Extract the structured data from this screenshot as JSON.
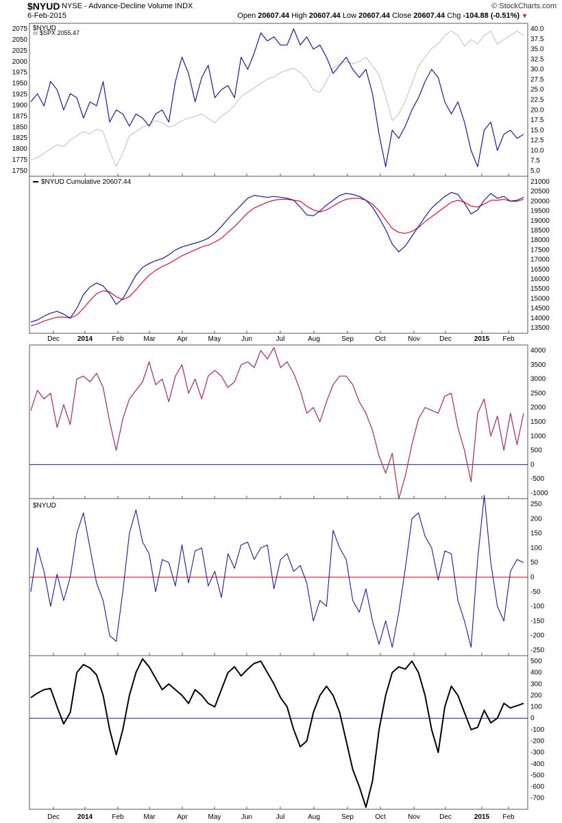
{
  "header": {
    "symbol": "$NYUD",
    "description": "NYSE - Advance-Decline Volume  INDX",
    "date": "6-Feb-2015",
    "brand": "© StockCharts.com",
    "open_label": "Open",
    "open": "20607.44",
    "high_label": "High",
    "high": "20607.44",
    "low_label": "Low",
    "low": "20607.44",
    "close_label": "Close",
    "close": "20607.44",
    "chg_label": "Chg",
    "chg": "-104.88 (-0.51%)"
  },
  "panel_labels": {
    "p1_line1": "$NYUD",
    "p1_line2": "$SPX 2055.47",
    "p2": "$NYUD Cumulative 20607.44",
    "p4": "$NYUD"
  },
  "x_axis_labels": [
    "Dec",
    "2014",
    "Feb",
    "Mar",
    "Apr",
    "May",
    "Jun",
    "Jul",
    "Aug",
    "Sep",
    "Oct",
    "Nov",
    "Dec",
    "2015",
    "Feb"
  ],
  "colors": {
    "nyud": "#1a1a8c",
    "spx": "#c8c8c8",
    "ma": "#d0103a",
    "osc": "#a03a62",
    "zero": "#1a1a8c",
    "zero_red": "#c8102e",
    "black": "#000000"
  },
  "chart_data": [
    {
      "type": "line",
      "title": "$NYUD",
      "x": [
        0,
        10,
        20,
        30,
        40,
        50,
        60,
        70,
        80,
        90,
        100,
        110,
        120,
        130,
        140,
        150,
        160,
        170,
        180,
        190,
        200,
        210,
        220,
        230,
        240,
        250,
        260,
        270,
        280,
        290,
        300,
        310,
        320,
        330,
        340,
        350,
        360,
        370,
        380,
        390,
        400,
        410,
        420,
        430,
        440,
        450,
        460,
        470,
        480,
        490,
        500,
        510,
        520,
        530,
        540,
        550,
        560,
        570,
        580,
        590,
        600,
        610,
        620,
        630,
        640,
        650,
        660,
        670,
        680,
        690,
        700,
        710,
        720,
        730,
        740,
        750
      ],
      "series": [
        {
          "name": "$NYUD",
          "axis": "right",
          "values": [
            22,
            24,
            21,
            27,
            25,
            20,
            24,
            23,
            18,
            22,
            21,
            27,
            17,
            20,
            19,
            16,
            19,
            18,
            16,
            19,
            20,
            17,
            27,
            33,
            29,
            22,
            28,
            31,
            23,
            25,
            26,
            23,
            33,
            30,
            34,
            39,
            37,
            38,
            36,
            36,
            40,
            36,
            38,
            35,
            36,
            33,
            29,
            31,
            33,
            30,
            28,
            30,
            24,
            14,
            6,
            15,
            13,
            16,
            20,
            23,
            27,
            30,
            28,
            22,
            19,
            22,
            17,
            10,
            6,
            15,
            17,
            10,
            14,
            15,
            13,
            14
          ]
        },
        {
          "name": "$SPX",
          "axis": "left",
          "values": [
            1775,
            1780,
            1790,
            1800,
            1810,
            1805,
            1820,
            1830,
            1840,
            1835,
            1845,
            1840,
            1795,
            1760,
            1790,
            1830,
            1840,
            1850,
            1855,
            1865,
            1860,
            1850,
            1855,
            1865,
            1870,
            1875,
            1880,
            1870,
            1860,
            1875,
            1885,
            1900,
            1920,
            1930,
            1940,
            1950,
            1960,
            1965,
            1975,
            1980,
            1985,
            1975,
            1960,
            1935,
            1930,
            1955,
            1985,
            1995,
            2000,
            1995,
            2000,
            2010,
            1990,
            1970,
            1920,
            1865,
            1880,
            1910,
            1950,
            1990,
            2010,
            2030,
            2040,
            2060,
            2070,
            2060,
            2035,
            2050,
            2040,
            2060,
            2070,
            2040,
            2050,
            2060,
            2070,
            2060
          ]
        }
      ],
      "ylim_right": [
        5,
        40
      ],
      "ylim_left": [
        1750,
        2075
      ],
      "yticks_right": [
        5.0,
        7.5,
        10.0,
        12.5,
        15.0,
        17.5,
        20.0,
        22.5,
        25.0,
        27.5,
        30.0,
        32.5,
        35.0,
        37.5,
        40.0
      ],
      "yticks_left": [
        1750,
        1775,
        1800,
        1825,
        1850,
        1875,
        1900,
        1925,
        1950,
        1975,
        2000,
        2025,
        2050,
        2075
      ]
    },
    {
      "type": "line",
      "title": "$NYUD Cumulative 20607.44",
      "x": [
        0,
        10,
        20,
        30,
        40,
        50,
        60,
        70,
        80,
        90,
        100,
        110,
        120,
        130,
        140,
        150,
        160,
        170,
        180,
        190,
        200,
        210,
        220,
        230,
        240,
        250,
        260,
        270,
        280,
        290,
        300,
        310,
        320,
        330,
        340,
        350,
        360,
        370,
        380,
        390,
        400,
        410,
        420,
        430,
        440,
        450,
        460,
        470,
        480,
        490,
        500,
        510,
        520,
        530,
        540,
        550,
        560,
        570,
        580,
        590,
        600,
        610,
        620,
        630,
        640,
        650,
        660,
        670,
        680,
        690,
        700,
        710,
        720,
        730,
        740,
        750
      ],
      "series": [
        {
          "name": "$NYUD Cumulative",
          "values": [
            13800,
            13900,
            14100,
            14250,
            14350,
            14200,
            14000,
            14500,
            15200,
            15600,
            15800,
            15650,
            15250,
            14700,
            15000,
            15600,
            16200,
            16600,
            16800,
            16950,
            17050,
            17250,
            17500,
            17650,
            17750,
            17850,
            17950,
            18100,
            18350,
            18700,
            19100,
            19450,
            19800,
            20150,
            20300,
            20250,
            20200,
            20250,
            20200,
            20150,
            20050,
            19700,
            19300,
            19250,
            19500,
            19800,
            20050,
            20300,
            20400,
            20350,
            20250,
            20050,
            19700,
            19150,
            18550,
            17800,
            17400,
            17700,
            18200,
            18700,
            19200,
            19650,
            19950,
            20250,
            20450,
            20350,
            19900,
            19350,
            19550,
            20050,
            20400,
            20150,
            20250,
            20000,
            20050,
            20200
          ]
        },
        {
          "name": "Moving Average",
          "values": [
            13600,
            13700,
            13850,
            13950,
            14050,
            14050,
            14000,
            14150,
            14500,
            14900,
            15250,
            15400,
            15350,
            15100,
            14950,
            15100,
            15450,
            15850,
            16200,
            16450,
            16650,
            16800,
            17000,
            17200,
            17350,
            17500,
            17650,
            17750,
            17900,
            18100,
            18400,
            18700,
            19050,
            19400,
            19650,
            19800,
            19950,
            20050,
            20100,
            20100,
            20050,
            20000,
            19750,
            19550,
            19450,
            19550,
            19750,
            19950,
            20100,
            20150,
            20150,
            20050,
            19850,
            19500,
            19050,
            18600,
            18400,
            18350,
            18450,
            18650,
            18950,
            19200,
            19450,
            19700,
            19950,
            20050,
            19950,
            19750,
            19700,
            19850,
            20050,
            20050,
            20100,
            20000,
            20000,
            20100
          ]
        }
      ],
      "ylim": [
        13500,
        21000
      ],
      "yticks": [
        13500,
        14000,
        14500,
        15000,
        15500,
        16000,
        16500,
        17000,
        17500,
        18000,
        18500,
        19000,
        19500,
        20000,
        20500,
        21000
      ]
    },
    {
      "type": "line",
      "title": "",
      "x": [
        0,
        10,
        20,
        30,
        40,
        50,
        60,
        70,
        80,
        90,
        100,
        110,
        120,
        130,
        140,
        150,
        160,
        170,
        180,
        190,
        200,
        210,
        220,
        230,
        240,
        250,
        260,
        270,
        280,
        290,
        300,
        310,
        320,
        330,
        340,
        350,
        360,
        370,
        380,
        390,
        400,
        410,
        420,
        430,
        440,
        450,
        460,
        470,
        480,
        490,
        500,
        510,
        520,
        530,
        540,
        550,
        560,
        570,
        580,
        590,
        600,
        610,
        620,
        630,
        640,
        650,
        660,
        670,
        680,
        690,
        700,
        710,
        720,
        730,
        740,
        750
      ],
      "series": [
        {
          "name": "",
          "values": [
            1900,
            2600,
            2300,
            2500,
            1300,
            2100,
            1400,
            3000,
            3100,
            2900,
            3200,
            2700,
            1500,
            500,
            1600,
            2300,
            2600,
            2900,
            3600,
            2800,
            3000,
            2200,
            3100,
            3500,
            2500,
            3000,
            2300,
            3100,
            3300,
            3100,
            2700,
            2900,
            3500,
            3600,
            3400,
            4000,
            3700,
            4100,
            3400,
            3600,
            3200,
            2600,
            1800,
            2000,
            1500,
            2200,
            2800,
            3100,
            3100,
            2800,
            2200,
            1800,
            1200,
            300,
            -300,
            400,
            -1200,
            -400,
            700,
            1600,
            2000,
            1900,
            1800,
            2400,
            2500,
            1300,
            500,
            -600,
            1800,
            2300,
            1000,
            1700,
            500,
            1800,
            700,
            1800
          ]
        }
      ],
      "ylim": [
        -1000,
        4000
      ],
      "yticks": [
        -1000,
        -500,
        0,
        500,
        1000,
        1500,
        2000,
        2500,
        3000,
        3500,
        4000
      ]
    },
    {
      "type": "line",
      "title": "$NYUD",
      "x": [
        0,
        10,
        20,
        30,
        40,
        50,
        60,
        70,
        80,
        90,
        100,
        110,
        120,
        130,
        140,
        150,
        160,
        170,
        180,
        190,
        200,
        210,
        220,
        230,
        240,
        250,
        260,
        270,
        280,
        290,
        300,
        310,
        320,
        330,
        340,
        350,
        360,
        370,
        380,
        390,
        400,
        410,
        420,
        430,
        440,
        450,
        460,
        470,
        480,
        490,
        500,
        510,
        520,
        530,
        540,
        550,
        560,
        570,
        580,
        590,
        600,
        610,
        620,
        630,
        640,
        650,
        660,
        670,
        680,
        690,
        700,
        710,
        720,
        730,
        740,
        750
      ],
      "series": [
        {
          "name": "",
          "values": [
            -50,
            100,
            20,
            -100,
            10,
            -80,
            0,
            150,
            220,
            100,
            -20,
            -80,
            -200,
            -220,
            -50,
            150,
            230,
            120,
            80,
            -50,
            60,
            50,
            -30,
            110,
            -20,
            90,
            100,
            -30,
            20,
            -70,
            80,
            30,
            110,
            120,
            60,
            100,
            110,
            -40,
            60,
            80,
            20,
            40,
            -20,
            -150,
            -80,
            -100,
            160,
            100,
            60,
            -80,
            -120,
            -40,
            -150,
            -230,
            -150,
            -240,
            -120,
            30,
            200,
            220,
            140,
            100,
            -10,
            90,
            80,
            -80,
            -150,
            -240,
            60,
            280,
            50,
            -100,
            -150,
            20,
            60,
            50
          ]
        }
      ],
      "ylim": [
        -250,
        250
      ],
      "yticks": [
        -250,
        -200,
        -150,
        -100,
        -50,
        0,
        50,
        100,
        150,
        200,
        250
      ]
    },
    {
      "type": "line",
      "title": "",
      "x": [
        0,
        10,
        20,
        30,
        40,
        50,
        60,
        70,
        80,
        90,
        100,
        110,
        120,
        130,
        140,
        150,
        160,
        170,
        180,
        190,
        200,
        210,
        220,
        230,
        240,
        250,
        260,
        270,
        280,
        290,
        300,
        310,
        320,
        330,
        340,
        350,
        360,
        370,
        380,
        390,
        400,
        410,
        420,
        430,
        440,
        450,
        460,
        470,
        480,
        490,
        500,
        510,
        520,
        530,
        540,
        550,
        560,
        570,
        580,
        590,
        600,
        610,
        620,
        630,
        640,
        650,
        660,
        670,
        680,
        690,
        700,
        710,
        720,
        730,
        740,
        750
      ],
      "series": [
        {
          "name": "",
          "values": [
            180,
            220,
            250,
            260,
            100,
            -50,
            50,
            400,
            470,
            440,
            380,
            200,
            -100,
            -320,
            -100,
            200,
            400,
            520,
            450,
            350,
            250,
            300,
            250,
            200,
            130,
            250,
            200,
            130,
            100,
            250,
            400,
            450,
            370,
            430,
            480,
            500,
            400,
            300,
            180,
            100,
            -100,
            -250,
            -200,
            50,
            200,
            280,
            200,
            50,
            -200,
            -450,
            -600,
            -780,
            -550,
            -100,
            200,
            400,
            450,
            430,
            500,
            400,
            200,
            -100,
            -300,
            100,
            280,
            200,
            50,
            -100,
            -80,
            70,
            -40,
            0,
            130,
            90,
            110,
            130
          ]
        }
      ],
      "ylim": [
        -750,
        500
      ],
      "yticks": [
        -700,
        -600,
        -500,
        -400,
        -300,
        -200,
        -100,
        0,
        100,
        200,
        300,
        400,
        500
      ]
    }
  ]
}
